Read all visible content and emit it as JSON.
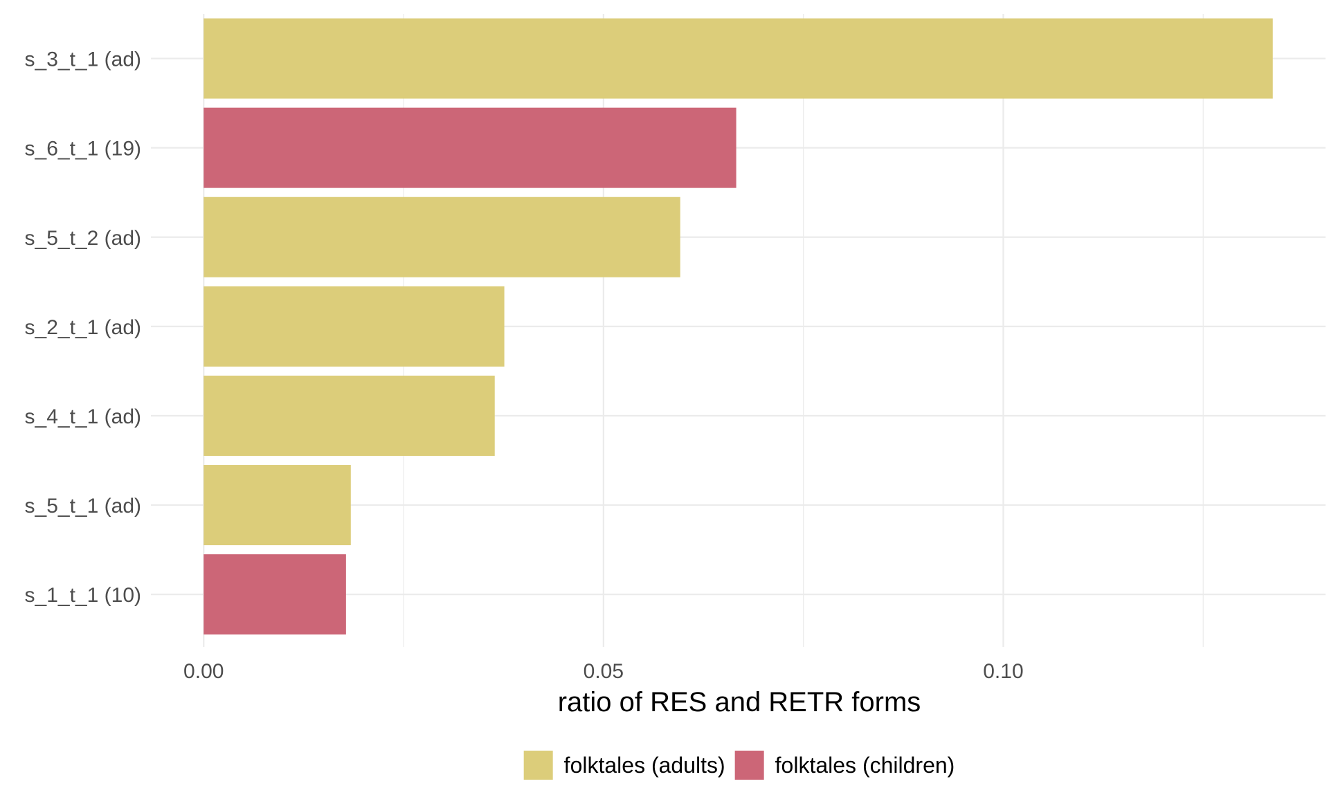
{
  "chart_data": {
    "type": "bar",
    "orientation": "horizontal",
    "categories": [
      "s_3_t_1 (ad)",
      "s_6_t_1 (19)",
      "s_5_t_2 (ad)",
      "s_2_t_1 (ad)",
      "s_4_t_1 (ad)",
      "s_5_t_1 (ad)",
      "s_1_t_1 (10)"
    ],
    "values": [
      0.1337,
      0.0666,
      0.0596,
      0.0376,
      0.0364,
      0.0184,
      0.0178
    ],
    "groups": [
      "folktales (adults)",
      "folktales (children)",
      "folktales (adults)",
      "folktales (adults)",
      "folktales (adults)",
      "folktales (adults)",
      "folktales (children)"
    ],
    "title": "",
    "xlabel": "ratio of RES and RETR forms",
    "ylabel": "",
    "xlim": [
      -0.0066,
      0.1403
    ],
    "xticks": [
      0.0,
      0.05,
      0.1
    ],
    "xtick_labels": [
      "0.00",
      "0.05",
      "0.10"
    ],
    "grid": true,
    "legend": {
      "position": "bottom",
      "entries": [
        {
          "label": "folktales (adults)",
          "color": "#DCCD7A"
        },
        {
          "label": "folktales (children)",
          "color": "#CC6677"
        }
      ]
    }
  }
}
